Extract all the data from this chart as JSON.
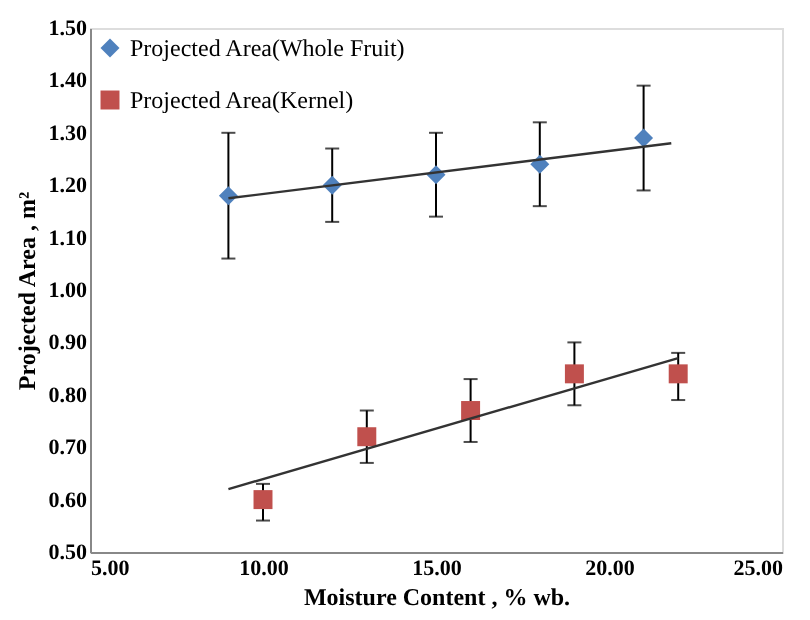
{
  "chart_data": {
    "type": "scatter",
    "xlabel": "Moisture Content , % wb.",
    "ylabel": "Projected Area , m²",
    "xlim": [
      5,
      25
    ],
    "xticks": [
      {
        "value": 5,
        "label": "5.00"
      },
      {
        "value": 10,
        "label": "10.00"
      },
      {
        "value": 15,
        "label": "15.00"
      },
      {
        "value": 20,
        "label": "20.00"
      },
      {
        "value": 25,
        "label": "25.00"
      }
    ],
    "ylim": [
      0.5,
      1.5
    ],
    "yticks": [
      {
        "value": 0.5,
        "label": "0.50"
      },
      {
        "value": 0.6,
        "label": "0.60"
      },
      {
        "value": 0.7,
        "label": "0.70"
      },
      {
        "value": 0.8,
        "label": "0.80"
      },
      {
        "value": 0.9,
        "label": "0.90"
      },
      {
        "value": 1.0,
        "label": "1.00"
      },
      {
        "value": 1.1,
        "label": "1.10"
      },
      {
        "value": 1.2,
        "label": "1.20"
      },
      {
        "value": 1.3,
        "label": "1.30"
      },
      {
        "value": 1.4,
        "label": "1.40"
      },
      {
        "value": 1.5,
        "label": "1.50"
      }
    ],
    "grid": false,
    "legend": "top left",
    "series": [
      {
        "name": "Projected Area(Whole Fruit)",
        "marker": "diamond",
        "color": "#4f81bd",
        "x": [
          9,
          12,
          15,
          18,
          21
        ],
        "values": [
          1.18,
          1.2,
          1.22,
          1.24,
          1.29
        ],
        "errors": [
          [
            1.06,
            1.3
          ],
          [
            1.13,
            1.27
          ],
          [
            1.14,
            1.3
          ],
          [
            1.16,
            1.32
          ],
          [
            1.19,
            1.39
          ]
        ]
      },
      {
        "name": "Projected Area(Kernel)",
        "marker": "square",
        "color": "#c0504d",
        "x": [
          10,
          13,
          16,
          19,
          22
        ],
        "values": [
          0.6,
          0.72,
          0.77,
          0.84,
          0.84
        ],
        "errors": [
          [
            0.56,
            0.63
          ],
          [
            0.67,
            0.77
          ],
          [
            0.71,
            0.83
          ],
          [
            0.78,
            0.9
          ],
          [
            0.79,
            0.88
          ]
        ]
      },
      {
        "type": "line",
        "line_style": "solid",
        "color": "#333333",
        "x": [
          9,
          21.8
        ],
        "values": [
          1.175,
          1.28
        ]
      },
      {
        "type": "line",
        "line_style": "solid",
        "color": "#333333",
        "x": [
          9,
          22
        ],
        "values": [
          0.62,
          0.87
        ]
      }
    ]
  }
}
